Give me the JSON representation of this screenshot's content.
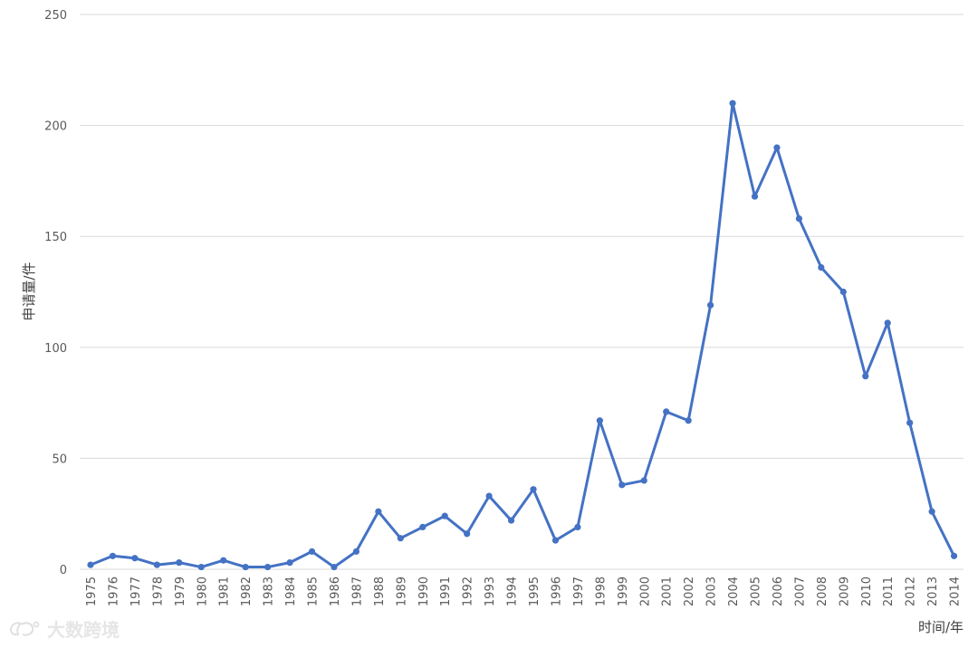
{
  "chart_data": {
    "type": "line",
    "title": "",
    "xlabel": "时间/年",
    "ylabel": "申请量/件",
    "ylim": [
      0,
      250
    ],
    "yticks": [
      0,
      50,
      100,
      150,
      200,
      250
    ],
    "grid": true,
    "legend": "none",
    "categories": [
      "1975",
      "1976",
      "1977",
      "1978",
      "1979",
      "1980",
      "1981",
      "1982",
      "1983",
      "1984",
      "1985",
      "1986",
      "1987",
      "1988",
      "1989",
      "1990",
      "1991",
      "1992",
      "1993",
      "1994",
      "1995",
      "1996",
      "1997",
      "1998",
      "1999",
      "2000",
      "2001",
      "2002",
      "2003",
      "2004",
      "2005",
      "2006",
      "2007",
      "2008",
      "2009",
      "2010",
      "2011",
      "2012",
      "2013",
      "2014"
    ],
    "series": [
      {
        "color": "#4472c4",
        "values": [
          2,
          6,
          5,
          2,
          3,
          1,
          4,
          1,
          1,
          3,
          8,
          1,
          8,
          26,
          14,
          19,
          24,
          16,
          33,
          22,
          36,
          13,
          19,
          67,
          38,
          40,
          71,
          67,
          119,
          210,
          168,
          190,
          158,
          136,
          125,
          87,
          111,
          66,
          26,
          6
        ]
      }
    ]
  },
  "watermark": {
    "text": "大数跨境",
    "icon": "weibo-style-logo-icon"
  }
}
